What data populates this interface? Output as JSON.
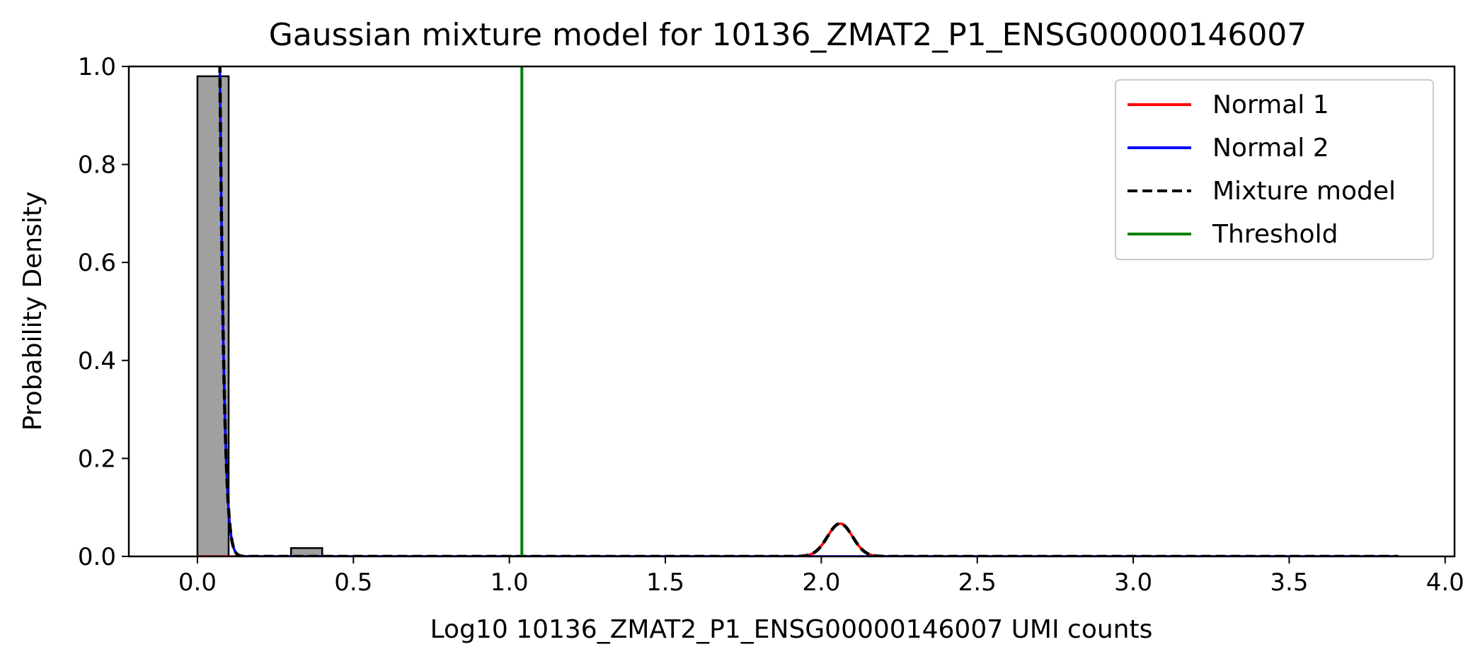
{
  "chart_data": {
    "type": "histogram+line",
    "title": "Gaussian mixture model for 10136_ZMAT2_P1_ENSG00000146007",
    "xlabel": "Log10 10136_ZMAT2_P1_ENSG00000146007 UMI counts",
    "ylabel": "Probability Density",
    "xlim": [
      -0.22,
      4.03
    ],
    "ylim": [
      0,
      1.0
    ],
    "x_ticks": [
      "0.0",
      "0.5",
      "1.0",
      "1.5",
      "2.0",
      "2.5",
      "3.0",
      "3.5",
      "4.0"
    ],
    "y_ticks": [
      "0.0",
      "0.2",
      "0.4",
      "0.6",
      "0.8",
      "1.0"
    ],
    "histogram": {
      "color": "#a0a0a0",
      "edgecolor": "#000000",
      "bins": [
        {
          "x0": 0.0,
          "x1": 0.1,
          "height": 0.98
        },
        {
          "x0": 0.3,
          "x1": 0.4,
          "height": 0.017
        }
      ]
    },
    "normal1": {
      "mean": 2.06,
      "sd": 0.04,
      "peak": 0.067
    },
    "normal2": {
      "mean": 0.0,
      "sd": 0.032
    },
    "curve_x_range": [
      0.0,
      3.85
    ],
    "threshold": 1.04,
    "series": [
      {
        "name": "Normal 1",
        "color": "#ff0000",
        "style": "solid"
      },
      {
        "name": "Normal 2",
        "color": "#0000ff",
        "style": "solid"
      },
      {
        "name": "Mixture model",
        "color": "#000000",
        "style": "dashed"
      },
      {
        "name": "Threshold",
        "color": "#008000",
        "style": "solid"
      }
    ],
    "legend_position": "top-right",
    "grid": false
  }
}
